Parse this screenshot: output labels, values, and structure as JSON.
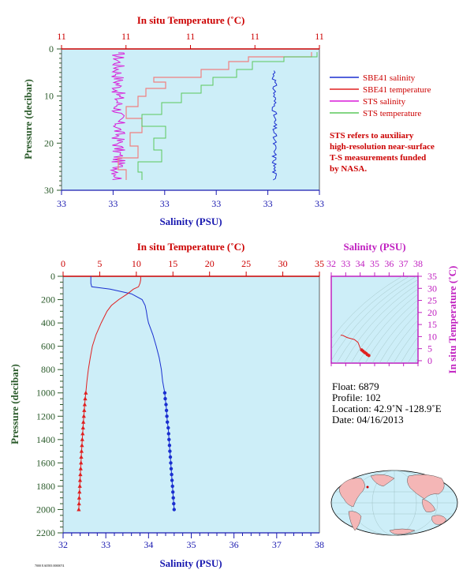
{
  "colors": {
    "plot_bg": "#cdeef8",
    "sbe_salinity": "#1a2fd0",
    "sbe_temperature": "#e02020",
    "sts_salinity": "#d81ad8",
    "sts_temperature": "#5cc85c",
    "temp_axis": "#cc0000",
    "sal_axis": "#1a1ab0",
    "pressure_axis": "#2a5a2a",
    "ts_axis": "#c020c0",
    "text": "#000000"
  },
  "top_panel": {
    "title_temp": "In situ Temperature (˚C)",
    "temp_ticks": [
      "11",
      "11",
      "11",
      "11",
      "11"
    ],
    "ylabel": "Pressure (decibar)",
    "y_ticks": [
      "0",
      "10",
      "20",
      "30"
    ],
    "xlabel": "Salinity (PSU)",
    "sal_ticks": [
      "33",
      "33",
      "33",
      "33",
      "33",
      "33"
    ]
  },
  "legend": {
    "items": [
      {
        "label": "SBE41 salinity",
        "color": "#1a2fd0"
      },
      {
        "label": "SBE41 temperature",
        "color": "#e02020"
      },
      {
        "label": "STS salinity",
        "color": "#d81ad8"
      },
      {
        "label": "STS temperature",
        "color": "#5cc85c"
      }
    ],
    "note": [
      "STS refers to auxiliary",
      "high-resolution near-surface",
      "T-S measurements funded",
      "by NASA."
    ]
  },
  "bottom_panel": {
    "title_temp": "In situ Temperature (˚C)",
    "temp_ticks": [
      "0",
      "5",
      "10",
      "15",
      "20",
      "25",
      "30",
      "35"
    ],
    "ylabel": "Pressure (decibar)",
    "y_ticks": [
      "0",
      "200",
      "400",
      "600",
      "800",
      "1000",
      "1200",
      "1400",
      "1600",
      "1800",
      "2000",
      "2200"
    ],
    "xlabel": "Salinity (PSU)",
    "sal_ticks": [
      "32",
      "33",
      "34",
      "35",
      "36",
      "37",
      "38"
    ]
  },
  "ts_panel": {
    "title": "Salinity (PSU)",
    "x_ticks": [
      "32",
      "33",
      "34",
      "35",
      "36",
      "37",
      "38"
    ],
    "ylabel": "In situ Temperature (˚C)",
    "y_ticks": [
      "0",
      "5",
      "10",
      "15",
      "20",
      "25",
      "30",
      "35"
    ]
  },
  "info": {
    "float": "Float:  6879",
    "profile": "Profile:  102",
    "location": "Location:  42.9˚N  -128.9˚E",
    "date": "Date:  04/16/2013"
  },
  "footer_code": "7000 EA0583 0000074",
  "chart_data": [
    {
      "type": "line",
      "id": "bottom_profile",
      "pressure_range": [
        0,
        2200
      ],
      "temperature_range": [
        0,
        35
      ],
      "salinity_range": [
        32,
        38
      ],
      "series": [
        {
          "name": "SBE41 salinity",
          "pressure": [
            0,
            20,
            60,
            90,
            110,
            150,
            200,
            250,
            300,
            350,
            400,
            500,
            600,
            700,
            800,
            900,
            1000,
            1050,
            1100,
            1150,
            1200,
            1250,
            1300,
            1350,
            1400,
            1450,
            1500,
            1550,
            1600,
            1650,
            1700,
            1750,
            1800,
            1850,
            1900,
            1950,
            2000
          ],
          "salinity": [
            32.65,
            32.65,
            32.65,
            32.67,
            33.1,
            33.6,
            33.85,
            33.92,
            33.95,
            33.97,
            34.0,
            34.1,
            34.18,
            34.25,
            34.3,
            34.33,
            34.38,
            34.39,
            34.41,
            34.42,
            34.43,
            34.44,
            34.46,
            34.47,
            34.48,
            34.49,
            34.5,
            34.51,
            34.52,
            34.53,
            34.54,
            34.55,
            34.56,
            34.57,
            34.58,
            34.59,
            34.6
          ]
        },
        {
          "name": "SBE41 temperature",
          "pressure": [
            0,
            30,
            60,
            90,
            110,
            150,
            200,
            250,
            300,
            400,
            500,
            600,
            700,
            800,
            900,
            1000,
            1050,
            1100,
            1150,
            1200,
            1250,
            1300,
            1350,
            1400,
            1450,
            1500,
            1550,
            1600,
            1650,
            1700,
            1750,
            1800,
            1850,
            1900,
            1950,
            2000
          ],
          "temperature": [
            10.6,
            10.6,
            10.5,
            10.3,
            9.6,
            8.8,
            7.6,
            6.6,
            6.0,
            5.2,
            4.5,
            4.0,
            3.7,
            3.45,
            3.25,
            3.1,
            3.02,
            2.95,
            2.89,
            2.83,
            2.77,
            2.72,
            2.67,
            2.62,
            2.57,
            2.52,
            2.48,
            2.44,
            2.4,
            2.36,
            2.32,
            2.28,
            2.24,
            2.2,
            2.17,
            2.14
          ]
        }
      ],
      "marker_pressures": [
        1000,
        1050,
        1100,
        1150,
        1200,
        1250,
        1300,
        1350,
        1400,
        1450,
        1500,
        1550,
        1600,
        1650,
        1700,
        1750,
        1800,
        1850,
        1900,
        1950,
        2000
      ]
    },
    {
      "type": "scatter",
      "id": "ts_diagram",
      "salinity_range": [
        32,
        38
      ],
      "temperature_range": [
        -1,
        35
      ],
      "points": [
        {
          "salinity": 32.65,
          "temperature": 10.6
        },
        {
          "salinity": 32.8,
          "temperature": 10.5
        },
        {
          "salinity": 33.1,
          "temperature": 9.6
        },
        {
          "salinity": 33.6,
          "temperature": 8.8
        },
        {
          "salinity": 33.85,
          "temperature": 7.6
        },
        {
          "salinity": 33.95,
          "temperature": 6.0
        },
        {
          "salinity": 34.0,
          "temperature": 5.2
        },
        {
          "salinity": 34.1,
          "temperature": 4.5
        },
        {
          "salinity": 34.2,
          "temperature": 4.0
        },
        {
          "salinity": 34.3,
          "temperature": 3.45
        },
        {
          "salinity": 34.4,
          "temperature": 3.1
        },
        {
          "salinity": 34.5,
          "temperature": 2.52
        },
        {
          "salinity": 34.6,
          "temperature": 2.14
        }
      ]
    },
    {
      "type": "line",
      "id": "top_profile",
      "pressure_range": [
        0,
        30
      ],
      "series": [
        {
          "name": "SBE41 salinity"
        },
        {
          "name": "SBE41 temperature"
        },
        {
          "name": "STS salinity"
        },
        {
          "name": "STS temperature"
        }
      ]
    }
  ]
}
